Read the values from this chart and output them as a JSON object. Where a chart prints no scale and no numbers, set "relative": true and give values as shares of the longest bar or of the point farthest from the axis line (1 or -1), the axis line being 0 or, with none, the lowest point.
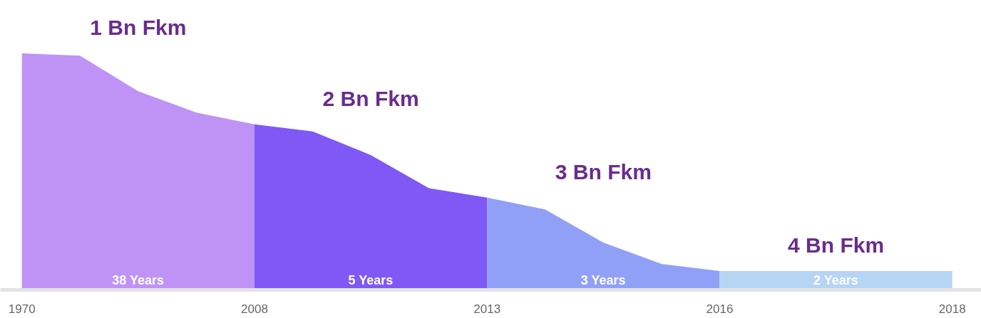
{
  "chart_data": {
    "type": "area",
    "relative": true,
    "categories": [
      "1970",
      null,
      null,
      null,
      "2008",
      null,
      null,
      null,
      "2013",
      null,
      null,
      null,
      "2016",
      null,
      null,
      null,
      "2018"
    ],
    "series": [
      {
        "color": "#bf93f5",
        "values": [
          1.0,
          0.99,
          0.84,
          0.75,
          0.7,
          null,
          null,
          null,
          null,
          null,
          null,
          null,
          null,
          null,
          null,
          null,
          null
        ]
      },
      {
        "color": "#7f58f6",
        "values": [
          null,
          null,
          null,
          null,
          0.7,
          0.67,
          0.57,
          0.43,
          0.39,
          null,
          null,
          null,
          null,
          null,
          null,
          null,
          null
        ]
      },
      {
        "color": "#91a0f7",
        "values": [
          null,
          null,
          null,
          null,
          null,
          null,
          null,
          null,
          0.39,
          0.34,
          0.2,
          0.11,
          0.08,
          null,
          null,
          null,
          null
        ]
      },
      {
        "color": "#b6d4f3",
        "values": [
          null,
          null,
          null,
          null,
          null,
          null,
          null,
          null,
          null,
          null,
          null,
          null,
          0.08,
          0.08,
          0.08,
          0.08,
          0.08
        ]
      }
    ],
    "annotations": [
      "1 Bn Fkm",
      "2 Bn Fkm",
      "3 Bn Fkm",
      "4 Bn Fkm",
      "38 Years",
      "5 Years",
      "3 Years",
      "2 Years"
    ],
    "grid": false
  }
}
